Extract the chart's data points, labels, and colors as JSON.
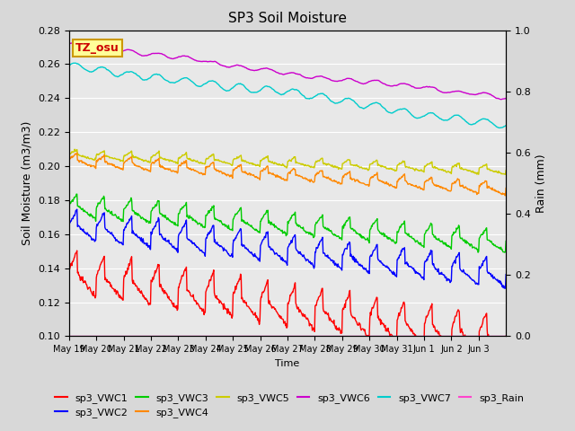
{
  "title": "SP3 Soil Moisture",
  "xlabel": "Time",
  "ylabel_left": "Soil Moisture (m3/m3)",
  "ylabel_right": "Rain (mm)",
  "annotation_text": "TZ_osu",
  "annotation_color": "#cc0000",
  "annotation_bg": "#ffff99",
  "annotation_border": "#cc9900",
  "ylim_left": [
    0.1,
    0.28
  ],
  "ylim_right": [
    0.0,
    1.0
  ],
  "x_tick_labels": [
    "May 19",
    "May 20",
    "May 21",
    "May 22",
    "May 23",
    "May 24",
    "May 25",
    "May 26",
    "May 27",
    "May 28",
    "May 29",
    "May 30",
    "May 31",
    "Jun 1",
    "Jun 2",
    "Jun 3"
  ],
  "fig_bg": "#d8d8d8",
  "plot_bg": "#e8e8e8",
  "grid_color": "#ffffff",
  "series": {
    "sp3_VWC1": {
      "color": "#ff0000",
      "lw": 1.0
    },
    "sp3_VWC2": {
      "color": "#0000ff",
      "lw": 1.0
    },
    "sp3_VWC3": {
      "color": "#00cc00",
      "lw": 1.0
    },
    "sp3_VWC4": {
      "color": "#ff8800",
      "lw": 1.0
    },
    "sp3_VWC5": {
      "color": "#cccc00",
      "lw": 1.0
    },
    "sp3_VWC6": {
      "color": "#cc00cc",
      "lw": 1.0
    },
    "sp3_VWC7": {
      "color": "#00cccc",
      "lw": 1.0
    },
    "sp3_Rain": {
      "color": "#ff44cc",
      "lw": 1.0
    }
  },
  "legend_order": [
    "sp3_VWC1",
    "sp3_VWC2",
    "sp3_VWC3",
    "sp3_VWC4",
    "sp3_VWC5",
    "sp3_VWC6",
    "sp3_VWC7",
    "sp3_Rain"
  ]
}
